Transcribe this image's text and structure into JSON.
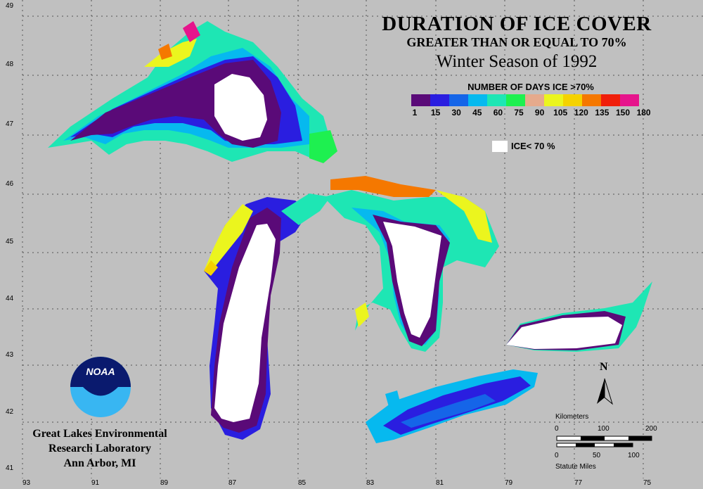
{
  "title": "DURATION OF ICE COVER",
  "subtitle": "GREATER THAN OR EQUAL TO 70%",
  "season": "Winter Season of 1992",
  "legend": {
    "title": "NUMBER OF DAYS ICE >70%",
    "ticks": [
      "1",
      "15",
      "30",
      "45",
      "60",
      "75",
      "90",
      "105",
      "120",
      "135",
      "150",
      "180"
    ],
    "colors": [
      "#5a0a78",
      "#2a1ee0",
      "#1565e8",
      "#06b9ef",
      "#1ee6b4",
      "#1ef050",
      "#e6aa8c",
      "#ebf51e",
      "#f5d200",
      "#f57800",
      "#f01e0a",
      "#e6148c"
    ],
    "ice_label": "ICE< 70 %",
    "ice_color": "#ffffff"
  },
  "credit": {
    "line1": "Great Lakes Environmental",
    "line2": "Research Laboratory",
    "line3": "Ann Arbor, MI",
    "logo_text": "NOAA"
  },
  "axes": {
    "lat_labels": [
      "49",
      "48",
      "47",
      "46",
      "45",
      "44",
      "43",
      "42",
      "41"
    ],
    "lon_labels": [
      "93",
      "91",
      "89",
      "87",
      "85",
      "83",
      "81",
      "79",
      "77",
      "75"
    ]
  },
  "scale": {
    "km_title": "Kilometers",
    "km_ticks": [
      "0",
      "100",
      "200"
    ],
    "mi_title": "Statute Miles",
    "mi_ticks": [
      "0",
      "50",
      "100"
    ]
  },
  "north": "N"
}
